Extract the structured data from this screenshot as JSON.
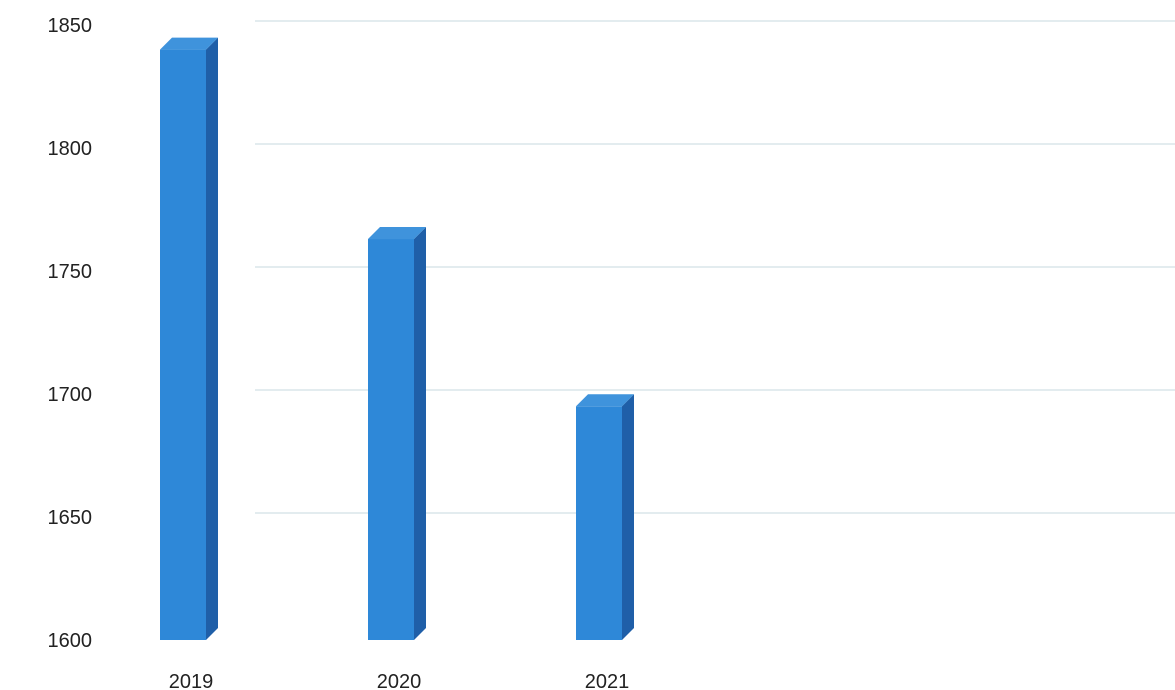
{
  "colors": {
    "bar_front": "#2e88d8",
    "bar_side": "#1f5fa8",
    "bar_top": "#3f93dc",
    "gridline": "#e3ecef",
    "text": "#222222"
  },
  "chart_data": {
    "type": "bar",
    "style": "3d-column",
    "categories": [
      "2019",
      "2020",
      "2021"
    ],
    "values": [
      1840,
      1763,
      1695
    ],
    "title": "",
    "xlabel": "",
    "ylabel": "",
    "ylim": [
      1600,
      1850
    ],
    "yticks": [
      "1600",
      "1650",
      "1700",
      "1750",
      "1800",
      "1850"
    ],
    "grid": true,
    "legend": "none"
  }
}
